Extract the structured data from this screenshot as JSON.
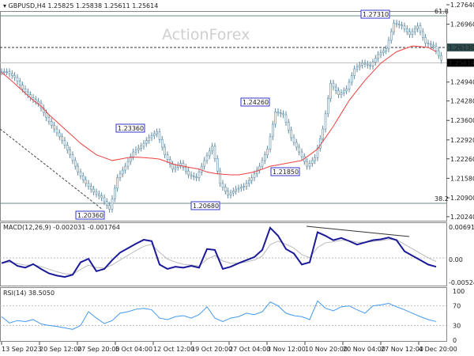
{
  "header": {
    "symbol": "GBPUSD,H4",
    "ohlc": "1.25825 1.25838 1.25611 1.25614"
  },
  "watermark": "ActionForex",
  "chart_data": [
    {
      "type": "candlestick",
      "title": "GBPUSD,H4",
      "ylim": [
        1.2024,
        1.2764
      ],
      "y_ticks": [
        "1.27640",
        "1.26960",
        "1.26300",
        "1.24940",
        "1.24280",
        "1.23600",
        "1.22920",
        "1.22260",
        "1.21580",
        "1.20900",
        "1.20240"
      ],
      "x_ticks": [
        "13 Sep 2023",
        "20 Sep 12:00",
        "27 Sep 20:00",
        "5 Oct 04:00",
        "12 Oct 12:00",
        "19 Oct 20:00",
        "27 Oct 04:00",
        "3 Nov 12:00",
        "10 Nov 20:00",
        "20 Nov 04:00",
        "27 Nov 12:00",
        "4 Dec 20:00"
      ],
      "closes": [
        1.253,
        1.251,
        1.247,
        1.244,
        1.242,
        1.237,
        1.233,
        1.229,
        1.224,
        1.218,
        1.214,
        1.211,
        1.209,
        1.205,
        1.216,
        1.22,
        1.225,
        1.227,
        1.23,
        1.232,
        1.224,
        1.219,
        1.221,
        1.217,
        1.216,
        1.222,
        1.227,
        1.214,
        1.21,
        1.212,
        1.213,
        1.216,
        1.22,
        1.226,
        1.239,
        1.238,
        1.23,
        1.225,
        1.22,
        1.223,
        1.233,
        1.249,
        1.245,
        1.247,
        1.254,
        1.256,
        1.255,
        1.259,
        1.261,
        1.27,
        1.269,
        1.266,
        1.269,
        1.263,
        1.262,
        1.257
      ],
      "moving_average": [
        1.2528,
        1.2505,
        1.248,
        1.2455,
        1.243,
        1.241,
        1.238,
        1.2355,
        1.233,
        1.2305,
        1.228,
        1.226,
        1.224,
        1.223,
        1.222,
        1.2225,
        1.223,
        1.2232,
        1.223,
        1.2228,
        1.2225,
        1.2215,
        1.2205,
        1.22,
        1.2195,
        1.219,
        1.218,
        1.2175,
        1.2172,
        1.217,
        1.217,
        1.2175,
        1.218,
        1.219,
        1.22,
        1.2205,
        1.221,
        1.2215,
        1.222,
        1.224,
        1.226,
        1.23,
        1.234,
        1.2385,
        1.243,
        1.2465,
        1.25,
        1.253,
        1.256,
        1.258,
        1.26,
        1.261,
        1.262,
        1.2618,
        1.2615,
        1.26
      ],
      "price_labels": [
        "1.27310",
        "1.24260",
        "1.23360",
        "1.21850",
        "1.20680",
        "1.20360"
      ],
      "levels": {
        "current": "1.25614",
        "dashed": "1.26130",
        "fib_618": "61.8",
        "fib_382": "38.2"
      },
      "colors": {
        "bars": "#5f8aa3",
        "ma": "#f04040",
        "label_border": "#3333cc"
      }
    },
    {
      "type": "line",
      "title": "MACD(12,26,9) -0.002031 -0.001764",
      "y_ticks": [
        "0.006915",
        "0.00",
        "-0.005241"
      ],
      "ylim": [
        -0.0052,
        0.0069
      ],
      "macd": [
        -0.0012,
        -0.0006,
        -0.0018,
        -0.0022,
        -0.0014,
        -0.0025,
        -0.0035,
        -0.004,
        -0.0043,
        -0.0038,
        -0.001,
        -0.0002,
        -0.003,
        -0.0025,
        -0.0005,
        0.0012,
        0.0022,
        0.0032,
        0.0041,
        0.0038,
        -0.0015,
        -0.0025,
        -0.002,
        -0.0022,
        -0.0018,
        -0.0022,
        0.002,
        0.0018,
        -0.0025,
        -0.002,
        -0.0012,
        -0.0005,
        0.0002,
        0.0018,
        0.0068,
        0.005,
        0.002,
        0.001,
        -0.0015,
        -0.001,
        0.0058,
        0.005,
        0.004,
        0.0045,
        0.0038,
        0.003,
        0.0035,
        0.004,
        0.0042,
        0.0046,
        0.004,
        0.0015,
        0.0005,
        -0.0005,
        -0.0015,
        -0.002
      ],
      "signal_color": "#bbbbbb",
      "macd_color": "#1a1a99",
      "trendline": "descending"
    },
    {
      "type": "line",
      "title": "RSI(14) 38.5050",
      "y_ticks": [
        "100",
        "70",
        "30",
        "0"
      ],
      "ylim": [
        0,
        100
      ],
      "rsi": [
        48,
        35,
        40,
        38,
        42,
        33,
        30,
        28,
        25,
        22,
        30,
        58,
        45,
        34,
        40,
        55,
        58,
        63,
        65,
        62,
        45,
        42,
        48,
        50,
        45,
        52,
        68,
        45,
        38,
        45,
        48,
        55,
        52,
        58,
        78,
        70,
        55,
        50,
        48,
        42,
        80,
        65,
        60,
        68,
        70,
        62,
        55,
        70,
        72,
        75,
        68,
        62,
        55,
        48,
        42,
        38
      ],
      "color": "#4499ee",
      "levels": [
        70,
        30
      ]
    }
  ]
}
